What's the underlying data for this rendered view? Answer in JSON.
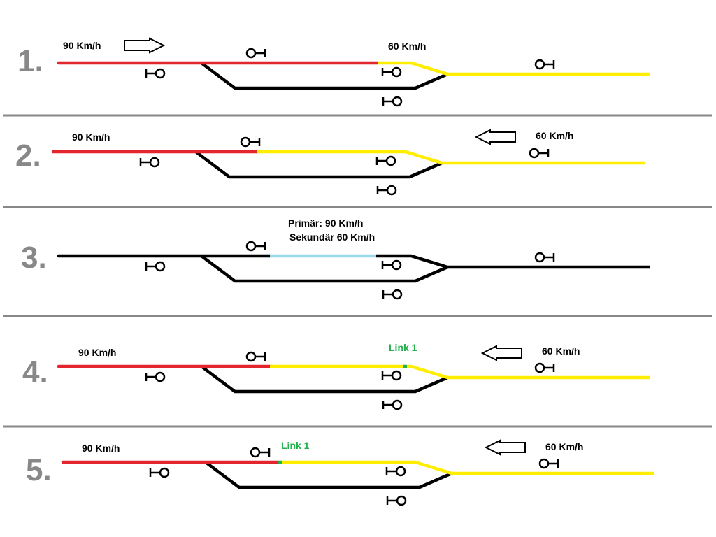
{
  "colors": {
    "red": "#e3262e",
    "yellow": "#ffee00",
    "black": "#000000",
    "lightblue": "#99d9ea",
    "green": "#22b14c",
    "divider": "#888888"
  },
  "panels": [
    {
      "number": "1.",
      "left_speed": "90 Km/h",
      "right_speed": "60 Km/h",
      "direction": "right",
      "segments": [
        "red",
        "yellow"
      ]
    },
    {
      "number": "2.",
      "left_speed": "90 Km/h",
      "right_speed": "60 Km/h",
      "direction": "left",
      "segments": [
        "red",
        "yellow"
      ]
    },
    {
      "number": "3.",
      "note_line1": "Primär: 90 Km/h",
      "note_line2": "Sekundär 60 Km/h",
      "segments": [
        "black",
        "lightblue",
        "black"
      ]
    },
    {
      "number": "4.",
      "left_speed": "90 Km/h",
      "right_speed": "60 Km/h",
      "link": "Link 1",
      "direction": "left",
      "segments": [
        "red",
        "yellow",
        "green",
        "yellow"
      ]
    },
    {
      "number": "5.",
      "left_speed": "90 Km/h",
      "right_speed": "60 Km/h",
      "link": "Link 1",
      "direction": "left",
      "segments": [
        "red",
        "green",
        "yellow"
      ]
    }
  ]
}
